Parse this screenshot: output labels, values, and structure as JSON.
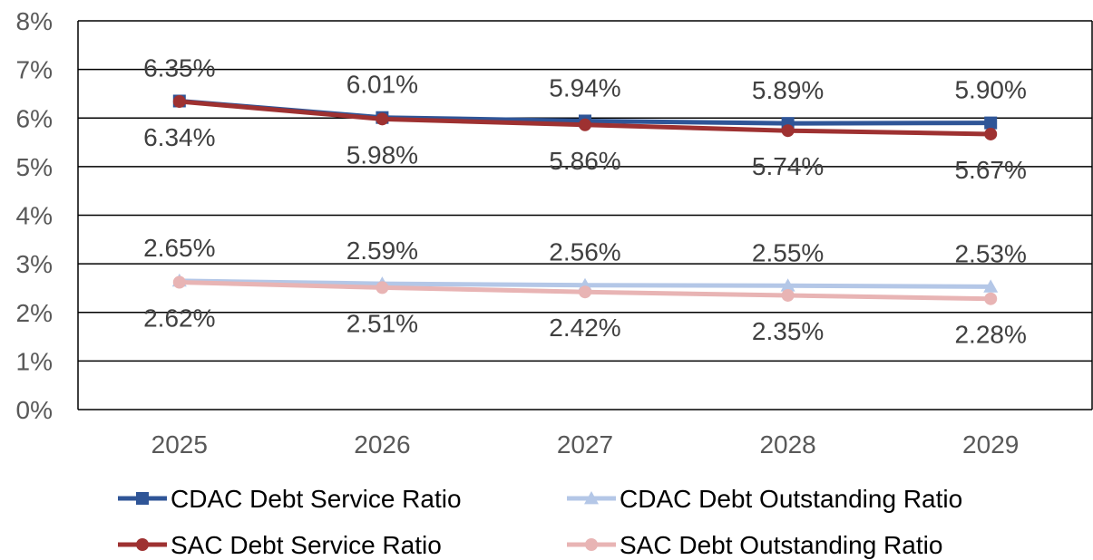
{
  "chart_data": {
    "type": "line",
    "title": "",
    "xlabel": "",
    "ylabel": "",
    "categories": [
      "2025",
      "2026",
      "2027",
      "2028",
      "2029"
    ],
    "y_ticks": [
      "0%",
      "1%",
      "2%",
      "3%",
      "4%",
      "5%",
      "6%",
      "7%",
      "8%"
    ],
    "ylim": [
      0,
      8
    ],
    "grid": true,
    "legend_position": "bottom",
    "series": [
      {
        "name": "CDAC Debt Service Ratio",
        "values": [
          6.35,
          6.01,
          5.94,
          5.89,
          5.9
        ],
        "labels": [
          "6.35%",
          "6.01%",
          "5.94%",
          "5.89%",
          "5.90%"
        ],
        "label_side": "above",
        "color": "#2f5597",
        "marker": "square"
      },
      {
        "name": "CDAC Debt Outstanding Ratio",
        "values": [
          2.65,
          2.59,
          2.56,
          2.55,
          2.53
        ],
        "labels": [
          "2.65%",
          "2.59%",
          "2.56%",
          "2.55%",
          "2.53%"
        ],
        "label_side": "above",
        "color": "#b4c7e7",
        "marker": "triangle"
      },
      {
        "name": "SAC Debt Service Ratio",
        "values": [
          6.34,
          5.98,
          5.86,
          5.74,
          5.67
        ],
        "labels": [
          "6.34%",
          "5.98%",
          "5.86%",
          "5.74%",
          "5.67%"
        ],
        "label_side": "below",
        "color": "#9e3131",
        "marker": "circle"
      },
      {
        "name": "SAC Debt Outstanding Ratio",
        "values": [
          2.62,
          2.51,
          2.42,
          2.35,
          2.28
        ],
        "labels": [
          "2.62%",
          "2.51%",
          "2.42%",
          "2.35%",
          "2.28%"
        ],
        "label_side": "below",
        "color": "#e8b4b4",
        "marker": "circle"
      }
    ]
  }
}
